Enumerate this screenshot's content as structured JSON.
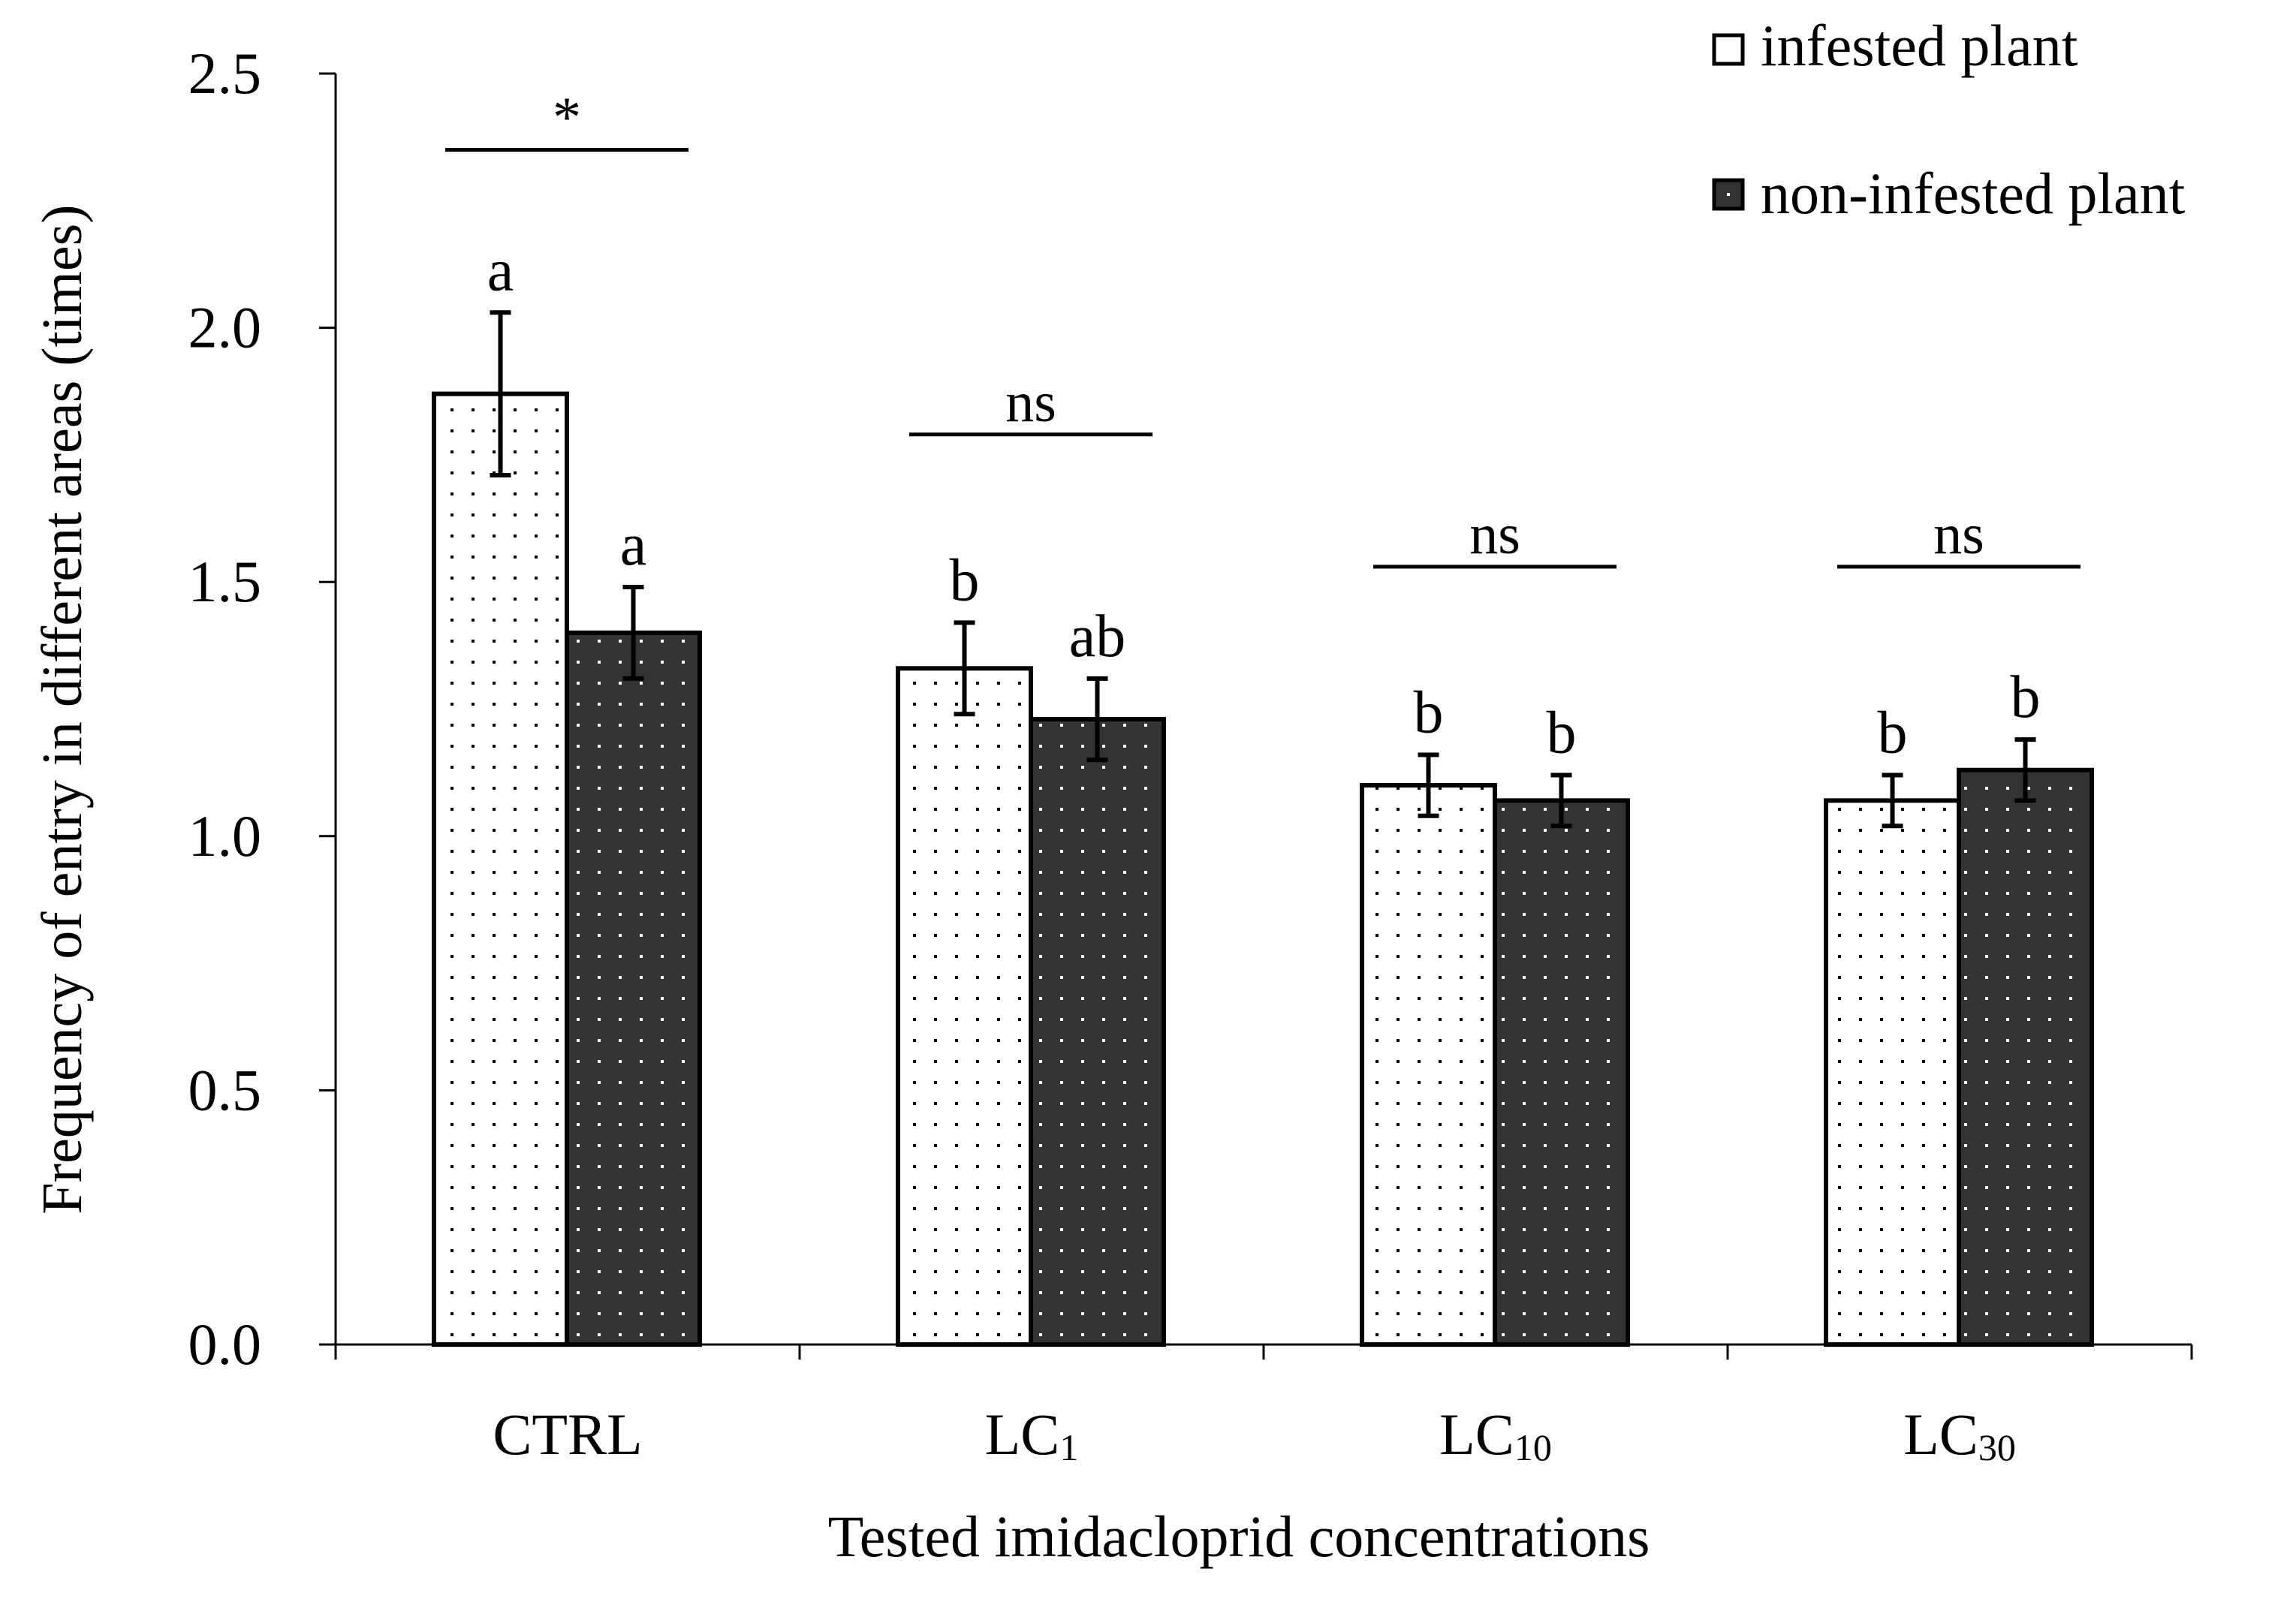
{
  "chart_data": {
    "type": "bar",
    "title": "",
    "xlabel": "Tested imidacloprid concentrations",
    "ylabel": "Frequency of entry in different areas (times)",
    "ylim": [
      0,
      2.5
    ],
    "yticks": [
      "0.0",
      "0.5",
      "1.0",
      "1.5",
      "2.0",
      "2.5"
    ],
    "categories": [
      {
        "base": "CTRL",
        "sub": ""
      },
      {
        "base": "LC",
        "sub": "1"
      },
      {
        "base": "LC",
        "sub": "10"
      },
      {
        "base": "LC",
        "sub": "30"
      }
    ],
    "series": [
      {
        "name": "infested plant",
        "fill": "#ffffff",
        "dot": "#000000",
        "values": [
          1.87,
          1.33,
          1.1,
          1.07
        ],
        "errors": [
          0.16,
          0.09,
          0.06,
          0.05
        ],
        "letters": [
          "a",
          "b",
          "b",
          "b"
        ]
      },
      {
        "name": "non-infested plant",
        "fill": "#333333",
        "dot": "#ffffff",
        "values": [
          1.4,
          1.23,
          1.07,
          1.13
        ],
        "errors": [
          0.09,
          0.08,
          0.05,
          0.06
        ],
        "letters": [
          "a",
          "ab",
          "b",
          "b"
        ]
      }
    ],
    "significance": [
      {
        "label": "*",
        "y": 2.35
      },
      {
        "label": "ns",
        "y": 1.79
      },
      {
        "label": "ns",
        "y": 1.53
      },
      {
        "label": "ns",
        "y": 1.53
      }
    ],
    "legend": {
      "position": "top-right"
    }
  }
}
